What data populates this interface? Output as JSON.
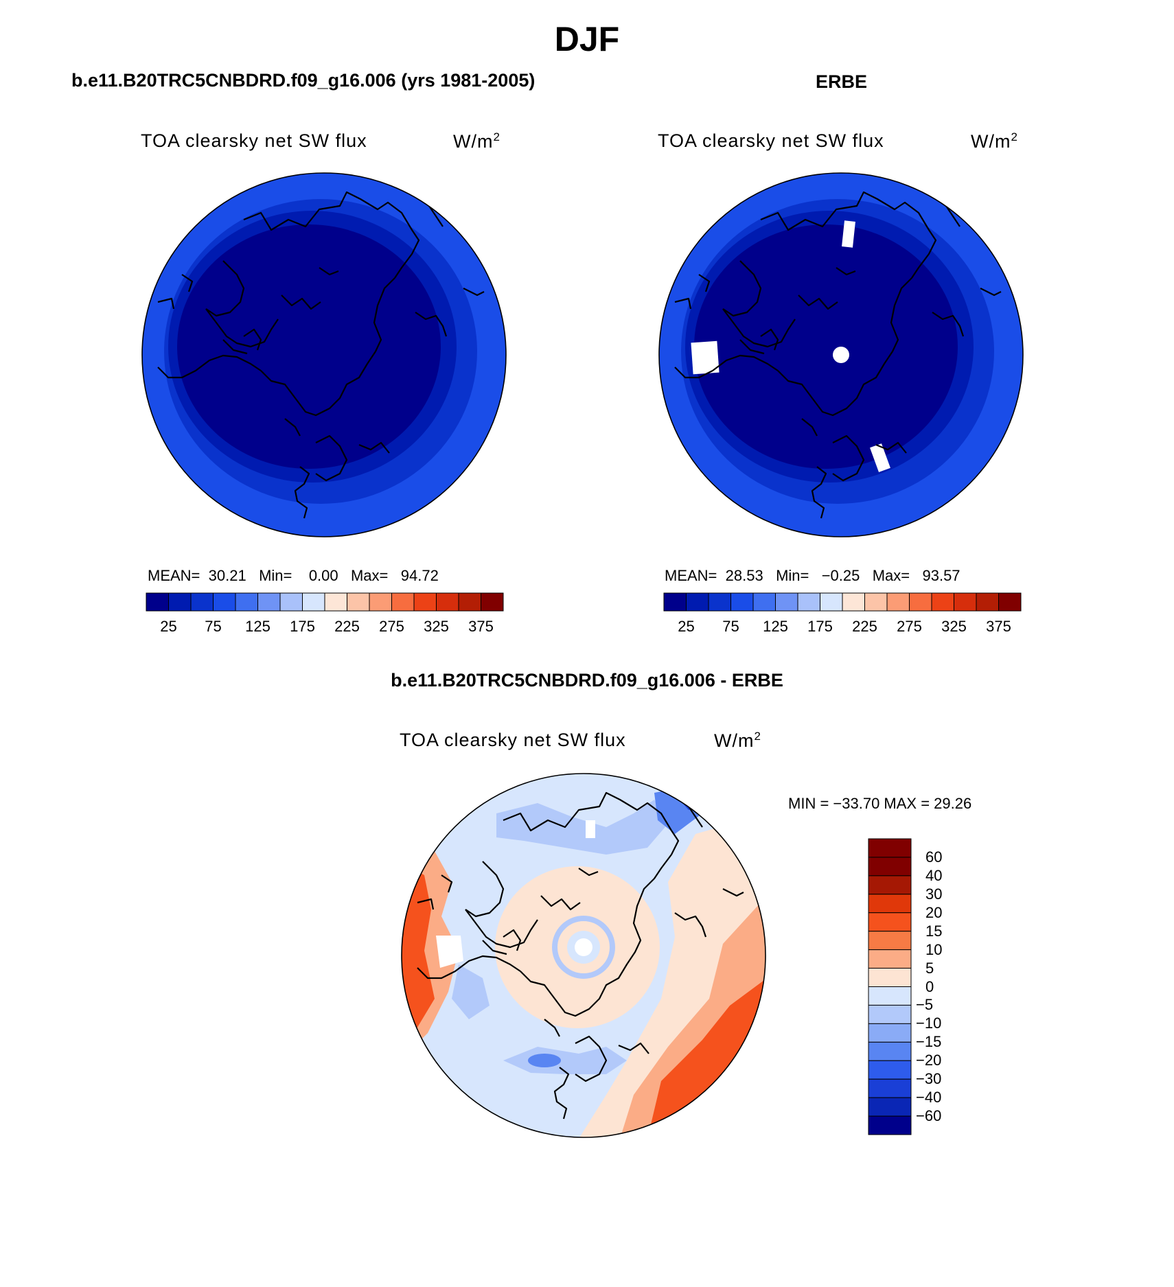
{
  "page": {
    "title": "DJF"
  },
  "panels": [
    {
      "id": "model",
      "title": "b.e11.B20TRC5CNBDRD.f09_g16.006 (yrs 1981-2005)",
      "variable": "TOA clearsky net SW flux",
      "units": "W/m",
      "units_exp": "2",
      "stats": {
        "mean_label": "MEAN=",
        "mean": "30.21",
        "min_label": "Min=",
        "min": "0.00",
        "max_label": "Max=",
        "max": "94.72"
      }
    },
    {
      "id": "obs",
      "title": "ERBE",
      "variable": "TOA clearsky net SW flux",
      "units": "W/m",
      "units_exp": "2",
      "stats": {
        "mean_label": "MEAN=",
        "mean": "28.53",
        "min_label": "Min=",
        "min": "−0.25",
        "max_label": "Max=",
        "max": "93.57"
      }
    },
    {
      "id": "diff",
      "title": "b.e11.B20TRC5CNBDRD.f09_g16.006 - ERBE",
      "variable": "TOA clearsky net SW flux",
      "units": "W/m",
      "units_exp": "2",
      "stats": {
        "text": "MIN = −33.70 MAX =   29.26"
      }
    }
  ],
  "colorbars": {
    "absolute": {
      "colors": [
        "#00008b",
        "#001bb0",
        "#0a33cc",
        "#1a4de8",
        "#3f6ff0",
        "#6f93f5",
        "#a9c1fa",
        "#d7e6fd",
        "#fde6d7",
        "#fcc4a8",
        "#fb9c75",
        "#f76d3f",
        "#ec4216",
        "#d62e0c",
        "#b31e05",
        "#800000"
      ],
      "tick_labels": [
        "25",
        "75",
        "125",
        "175",
        "225",
        "275",
        "325",
        "375"
      ]
    },
    "difference": {
      "colors": [
        "#800000",
        "#a51804",
        "#e0380a",
        "#f5521d",
        "#f77b45",
        "#fbac86",
        "#fde4d3",
        "#d7e6fd",
        "#b2c9fa",
        "#8aabf6",
        "#5985f2",
        "#2e5cec",
        "#1a3fd6",
        "#0a26b5",
        "#00008b"
      ],
      "tick_labels": [
        "60",
        "40",
        "30",
        "20",
        "15",
        "10",
        "5",
        "0",
        "−5",
        "−10",
        "−15",
        "−20",
        "−30",
        "−40",
        "−60"
      ]
    }
  },
  "map_colors": {
    "outer": "#1a4de8",
    "ring": "#0a33cc",
    "inner": "#001bb0",
    "core": "#00008b",
    "missing": "#ffffff",
    "coast": "#000000",
    "diff_base": "#d7e6fd",
    "diff_pos_light": "#fde4d3",
    "diff_pos_mid": "#fbac86",
    "diff_pos_strong": "#f5521d",
    "diff_neg_light": "#b2c9fa",
    "diff_neg_mid": "#5985f2",
    "diff_neg_strong": "#1a3fd6"
  }
}
